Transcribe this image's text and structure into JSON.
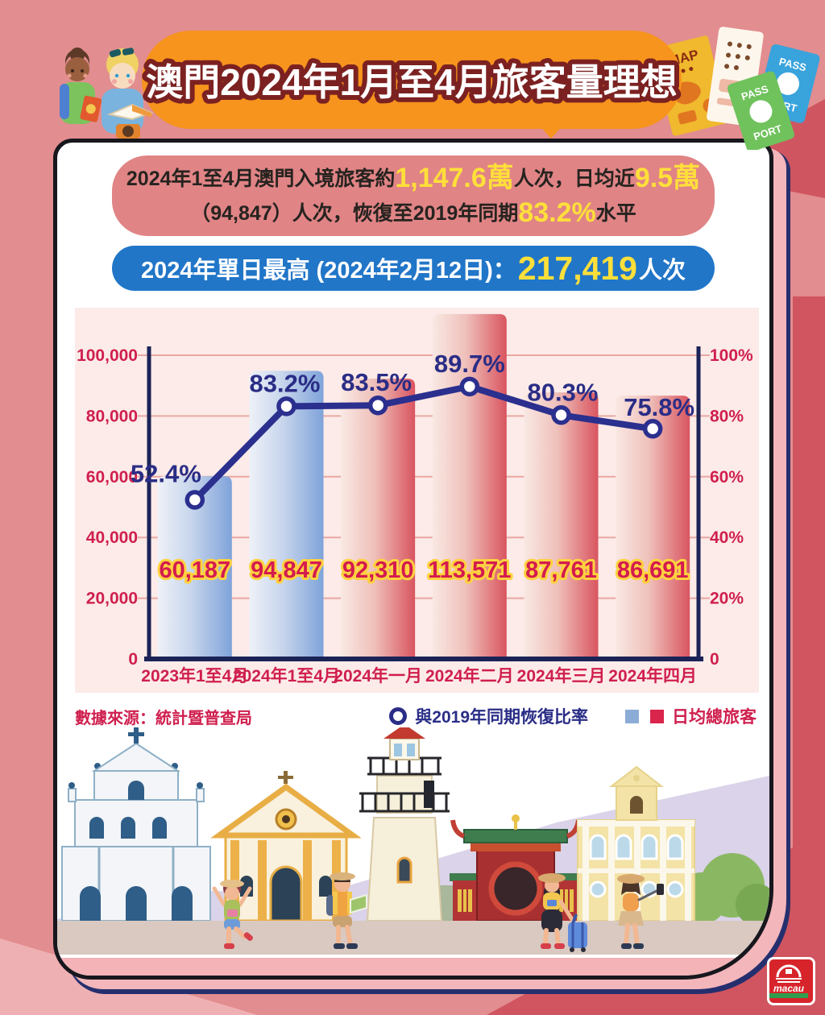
{
  "header": {
    "title": "澳門2024年1月至4月旅客量理想"
  },
  "summary": {
    "line1_pre": "2024年1至4月澳門入境旅客約",
    "line1_value1": "1,147.6萬",
    "line1_mid": "人次，日均近",
    "line1_value2": "9.5萬",
    "line2_pre": "（94,847）人次，恢復至2019年同期",
    "line2_value": "83.2%",
    "line2_post": "水平"
  },
  "peak": {
    "label": "2024年單日最高 (2024年2月12日)：",
    "value": "217,419",
    "suffix": "人次"
  },
  "chart_data": {
    "type": "bar+line",
    "categories": [
      "2023年1至4月",
      "2024年1至4月",
      "2024年一月",
      "2024年二月",
      "2024年三月",
      "2024年四月"
    ],
    "series": [
      {
        "name": "日均總旅客",
        "type": "bar",
        "values": [
          60187,
          94847,
          92310,
          113571,
          87761,
          86691
        ],
        "labels": [
          "60,187",
          "94,847",
          "92,310",
          "113,571",
          "87,761",
          "86,691"
        ],
        "bar_palette": [
          "blue",
          "blue",
          "red",
          "red",
          "red",
          "red"
        ]
      },
      {
        "name": "與2019年同期恢復比率",
        "type": "line",
        "values": [
          52.4,
          83.2,
          83.5,
          89.7,
          80.3,
          75.8
        ],
        "labels": [
          "52.4%",
          "83.2%",
          "83.5%",
          "89.7%",
          "80.3%",
          "75.8%"
        ]
      }
    ],
    "y_left": {
      "min": 0,
      "max": 100000,
      "ticks": [
        "0",
        "20,000",
        "40,000",
        "60,000",
        "80,000",
        "100,000"
      ]
    },
    "y_right": {
      "min": 0,
      "max": 100,
      "ticks": [
        "0",
        "20%",
        "40%",
        "60%",
        "80%",
        "100%"
      ]
    },
    "grid": true,
    "legend_position": "bottom-right"
  },
  "footer": {
    "source": "數據來源：統計暨普查局",
    "legend_line": "與2019年同期恢復比率",
    "legend_bar": "日均總旅客"
  },
  "decor": {
    "map_label": "MAP",
    "passport_line1": "PASS",
    "passport_line2": "PORT",
    "logo_text": "macau"
  },
  "colors": {
    "background": "#e28d8f",
    "banner_orange": "#f6941d",
    "summary_salmon": "#e08486",
    "pill_blue": "#2176c8",
    "highlight_yellow": "#ffdf3a",
    "crimson": "#cf1f4e",
    "navy": "#2a2d86",
    "bar_blue": "#7fa3da",
    "bar_red": "#d95560",
    "chart_panel": "#fcebe8"
  }
}
